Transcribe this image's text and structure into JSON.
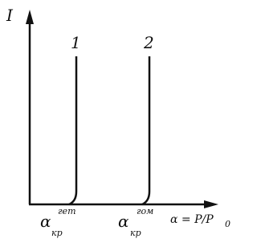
{
  "axes": {
    "y_label": "I",
    "x_label": {
      "main": "α = P/P",
      "sub": "0"
    }
  },
  "curves": [
    {
      "label": "1"
    },
    {
      "label": "2"
    }
  ],
  "x_marks": [
    {
      "symbol": "α",
      "sub": "кр",
      "sup": "гет"
    },
    {
      "symbol": "α",
      "sub": "кр",
      "sup": "гом"
    }
  ]
}
